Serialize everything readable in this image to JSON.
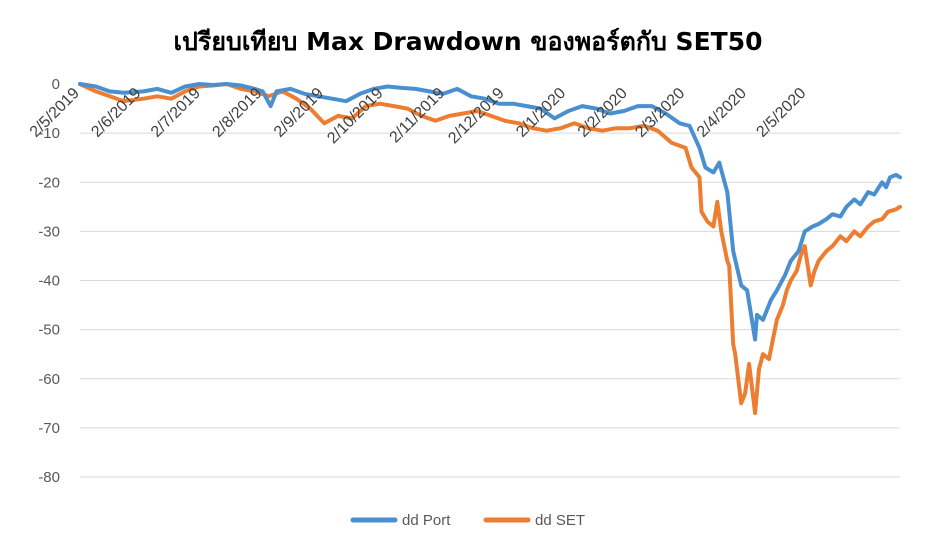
{
  "chart_data": {
    "type": "line",
    "title": "เปรียบเทียบ Max Drawdown ของพอร์ตกับ SET50",
    "xlabel": "",
    "ylabel": "",
    "ylim": [
      -80,
      0
    ],
    "y_ticks": [
      "0",
      "-10",
      "-20",
      "-30",
      "-40",
      "-50",
      "-60",
      "-70",
      "-80"
    ],
    "x_ticks": [
      "2/5/2019",
      "2/6/2019",
      "2/7/2019",
      "2/8/2019",
      "2/9/2019",
      "2/10/2019",
      "2/11/2019",
      "2/12/2019",
      "2/1/2020",
      "2/2/2020",
      "2/3/2020",
      "2/4/2020",
      "2/5/2020"
    ],
    "x_range": [
      "2019-05-02",
      "2020-06-18"
    ],
    "grid": true,
    "legend_position": "bottom",
    "series": [
      {
        "name": "dd Port",
        "color": "#4a8fcf",
        "points": [
          [
            "2019-05-02",
            0
          ],
          [
            "2019-05-10",
            -0.5
          ],
          [
            "2019-05-17",
            -1.5
          ],
          [
            "2019-05-24",
            -1.8
          ],
          [
            "2019-06-03",
            -1.5
          ],
          [
            "2019-06-10",
            -1.0
          ],
          [
            "2019-06-17",
            -1.8
          ],
          [
            "2019-06-24",
            -0.5
          ],
          [
            "2019-07-01",
            0
          ],
          [
            "2019-07-08",
            -0.2
          ],
          [
            "2019-07-15",
            0
          ],
          [
            "2019-07-22",
            -0.3
          ],
          [
            "2019-07-29",
            -1.0
          ],
          [
            "2019-08-02",
            -1.5
          ],
          [
            "2019-08-06",
            -4.5
          ],
          [
            "2019-08-09",
            -1.5
          ],
          [
            "2019-08-16",
            -1.0
          ],
          [
            "2019-08-23",
            -2.0
          ],
          [
            "2019-08-30",
            -2.5
          ],
          [
            "2019-09-06",
            -3.0
          ],
          [
            "2019-09-13",
            -3.5
          ],
          [
            "2019-09-20",
            -2.0
          ],
          [
            "2019-09-27",
            -1.0
          ],
          [
            "2019-10-04",
            -0.5
          ],
          [
            "2019-10-11",
            -0.8
          ],
          [
            "2019-10-18",
            -1.0
          ],
          [
            "2019-10-25",
            -1.5
          ],
          [
            "2019-11-01",
            -2.0
          ],
          [
            "2019-11-08",
            -1.0
          ],
          [
            "2019-11-15",
            -2.5
          ],
          [
            "2019-11-22",
            -3.0
          ],
          [
            "2019-11-29",
            -4.0
          ],
          [
            "2019-12-06",
            -4.0
          ],
          [
            "2019-12-13",
            -4.5
          ],
          [
            "2019-12-20",
            -5.0
          ],
          [
            "2019-12-27",
            -7.0
          ],
          [
            "2020-01-03",
            -5.5
          ],
          [
            "2020-01-10",
            -4.5
          ],
          [
            "2020-01-17",
            -5.0
          ],
          [
            "2020-01-24",
            -6.0
          ],
          [
            "2020-01-31",
            -5.5
          ],
          [
            "2020-02-07",
            -4.5
          ],
          [
            "2020-02-14",
            -4.5
          ],
          [
            "2020-02-21",
            -6.0
          ],
          [
            "2020-02-28",
            -8.0
          ],
          [
            "2020-03-04",
            -8.5
          ],
          [
            "2020-03-09",
            -13.0
          ],
          [
            "2020-03-12",
            -17.0
          ],
          [
            "2020-03-16",
            -18.0
          ],
          [
            "2020-03-19",
            -16.0
          ],
          [
            "2020-03-23",
            -22.0
          ],
          [
            "2020-03-26",
            -34.0
          ],
          [
            "2020-03-30",
            -41.0
          ],
          [
            "2020-04-02",
            -42.0
          ],
          [
            "2020-04-06",
            -52.0
          ],
          [
            "2020-04-07",
            -47.0
          ],
          [
            "2020-04-10",
            -48.0
          ],
          [
            "2020-04-14",
            -44.0
          ],
          [
            "2020-04-17",
            -42.0
          ],
          [
            "2020-04-21",
            -39.0
          ],
          [
            "2020-04-24",
            -36.0
          ],
          [
            "2020-04-28",
            -34.0
          ],
          [
            "2020-05-01",
            -30.0
          ],
          [
            "2020-05-05",
            -29.0
          ],
          [
            "2020-05-08",
            -28.5
          ],
          [
            "2020-05-12",
            -27.5
          ],
          [
            "2020-05-15",
            -26.5
          ],
          [
            "2020-05-19",
            -27.0
          ],
          [
            "2020-05-22",
            -25.0
          ],
          [
            "2020-05-26",
            -23.5
          ],
          [
            "2020-05-29",
            -24.5
          ],
          [
            "2020-06-02",
            -22.0
          ],
          [
            "2020-06-05",
            -22.5
          ],
          [
            "2020-06-09",
            -20.0
          ],
          [
            "2020-06-11",
            -21.0
          ],
          [
            "2020-06-13",
            -19.0
          ],
          [
            "2020-06-16",
            -18.5
          ],
          [
            "2020-06-18",
            -19.0
          ]
        ]
      },
      {
        "name": "dd SET",
        "color": "#ed7d31",
        "points": [
          [
            "2019-05-02",
            0
          ],
          [
            "2019-05-10",
            -1.5
          ],
          [
            "2019-05-17",
            -2.5
          ],
          [
            "2019-05-24",
            -3.5
          ],
          [
            "2019-06-03",
            -3.0
          ],
          [
            "2019-06-10",
            -2.5
          ],
          [
            "2019-06-17",
            -3.0
          ],
          [
            "2019-06-24",
            -1.5
          ],
          [
            "2019-07-01",
            -0.5
          ],
          [
            "2019-07-08",
            -0.3
          ],
          [
            "2019-07-15",
            0
          ],
          [
            "2019-07-22",
            -1.0
          ],
          [
            "2019-07-29",
            -1.5
          ],
          [
            "2019-08-05",
            -2.5
          ],
          [
            "2019-08-12",
            -1.5
          ],
          [
            "2019-08-19",
            -3.0
          ],
          [
            "2019-08-26",
            -5.0
          ],
          [
            "2019-09-02",
            -8.0
          ],
          [
            "2019-09-09",
            -6.5
          ],
          [
            "2019-09-16",
            -7.0
          ],
          [
            "2019-09-23",
            -4.5
          ],
          [
            "2019-09-30",
            -4.0
          ],
          [
            "2019-10-07",
            -4.5
          ],
          [
            "2019-10-14",
            -5.0
          ],
          [
            "2019-10-21",
            -6.5
          ],
          [
            "2019-10-28",
            -7.5
          ],
          [
            "2019-11-04",
            -6.5
          ],
          [
            "2019-11-11",
            -6.0
          ],
          [
            "2019-11-18",
            -5.5
          ],
          [
            "2019-11-25",
            -6.5
          ],
          [
            "2019-12-02",
            -7.5
          ],
          [
            "2019-12-09",
            -8.0
          ],
          [
            "2019-12-16",
            -9.0
          ],
          [
            "2019-12-23",
            -9.5
          ],
          [
            "2019-12-30",
            -9.0
          ],
          [
            "2020-01-06",
            -8.0
          ],
          [
            "2020-01-13",
            -9.0
          ],
          [
            "2020-01-20",
            -9.5
          ],
          [
            "2020-01-27",
            -9.0
          ],
          [
            "2020-02-03",
            -9.0
          ],
          [
            "2020-02-10",
            -8.5
          ],
          [
            "2020-02-17",
            -9.5
          ],
          [
            "2020-02-24",
            -12.0
          ],
          [
            "2020-03-02",
            -13.0
          ],
          [
            "2020-03-05",
            -17.0
          ],
          [
            "2020-03-09",
            -19.0
          ],
          [
            "2020-03-10",
            -26.0
          ],
          [
            "2020-03-13",
            -28.0
          ],
          [
            "2020-03-16",
            -29.0
          ],
          [
            "2020-03-18",
            -24.0
          ],
          [
            "2020-03-20",
            -30.0
          ],
          [
            "2020-03-23",
            -36.0
          ],
          [
            "2020-03-24",
            -37.0
          ],
          [
            "2020-03-26",
            -53.0
          ],
          [
            "2020-03-27",
            -55.0
          ],
          [
            "2020-03-30",
            -65.0
          ],
          [
            "2020-04-01",
            -63.0
          ],
          [
            "2020-04-03",
            -57.0
          ],
          [
            "2020-04-06",
            -67.0
          ],
          [
            "2020-04-08",
            -58.0
          ],
          [
            "2020-04-10",
            -55.0
          ],
          [
            "2020-04-13",
            -56.0
          ],
          [
            "2020-04-15",
            -52.0
          ],
          [
            "2020-04-17",
            -48.0
          ],
          [
            "2020-04-20",
            -45.0
          ],
          [
            "2020-04-22",
            -42.0
          ],
          [
            "2020-04-24",
            -40.0
          ],
          [
            "2020-04-27",
            -38.0
          ],
          [
            "2020-04-29",
            -35.0
          ],
          [
            "2020-05-01",
            -33.0
          ],
          [
            "2020-05-04",
            -41.0
          ],
          [
            "2020-05-06",
            -38.0
          ],
          [
            "2020-05-08",
            -36.0
          ],
          [
            "2020-05-12",
            -34.0
          ],
          [
            "2020-05-15",
            -33.0
          ],
          [
            "2020-05-19",
            -31.0
          ],
          [
            "2020-05-22",
            -32.0
          ],
          [
            "2020-05-26",
            -30.0
          ],
          [
            "2020-05-29",
            -31.0
          ],
          [
            "2020-06-02",
            -29.0
          ],
          [
            "2020-06-05",
            -28.0
          ],
          [
            "2020-06-09",
            -27.5
          ],
          [
            "2020-06-12",
            -26.0
          ],
          [
            "2020-06-16",
            -25.5
          ],
          [
            "2020-06-18",
            -25.0
          ]
        ]
      }
    ]
  }
}
